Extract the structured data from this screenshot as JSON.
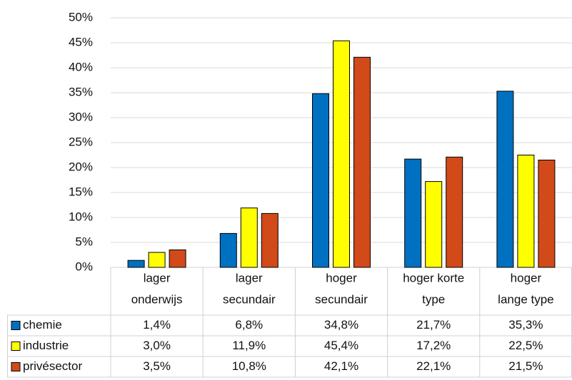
{
  "chart_data": {
    "type": "bar",
    "categories": [
      [
        "lager",
        "onderwijs"
      ],
      [
        "lager",
        "secundair"
      ],
      [
        "hoger",
        "secundair"
      ],
      [
        "hoger korte",
        "type"
      ],
      [
        "hoger",
        "lange type"
      ]
    ],
    "series": [
      {
        "name": "chemie",
        "color": "#0070c0",
        "values": [
          1.4,
          6.8,
          34.8,
          21.7,
          35.3
        ],
        "value_labels": [
          "1,4%",
          "6,8%",
          "34,8%",
          "21,7%",
          "35,3%"
        ]
      },
      {
        "name": "industrie",
        "color": "#ffff00",
        "values": [
          3.0,
          11.9,
          45.4,
          17.2,
          22.5
        ],
        "value_labels": [
          "3,0%",
          "11,9%",
          "45,4%",
          "17,2%",
          "22,5%"
        ]
      },
      {
        "name": "privésector",
        "color": "#d24a1a",
        "values": [
          3.5,
          10.8,
          42.1,
          22.1,
          21.5
        ],
        "value_labels": [
          "3,5%",
          "10,8%",
          "42,1%",
          "22,1%",
          "21,5%"
        ]
      }
    ],
    "ylim": [
      0,
      50
    ],
    "yticks": [
      {
        "value": 0,
        "label": "0%"
      },
      {
        "value": 5,
        "label": "5%"
      },
      {
        "value": 10,
        "label": "10%"
      },
      {
        "value": 15,
        "label": "15%"
      },
      {
        "value": 20,
        "label": "20%"
      },
      {
        "value": 25,
        "label": "25%"
      },
      {
        "value": 30,
        "label": "30%"
      },
      {
        "value": 35,
        "label": "35%"
      },
      {
        "value": 40,
        "label": "40%"
      },
      {
        "value": 45,
        "label": "45%"
      },
      {
        "value": 50,
        "label": "50%"
      }
    ],
    "grid": true
  }
}
